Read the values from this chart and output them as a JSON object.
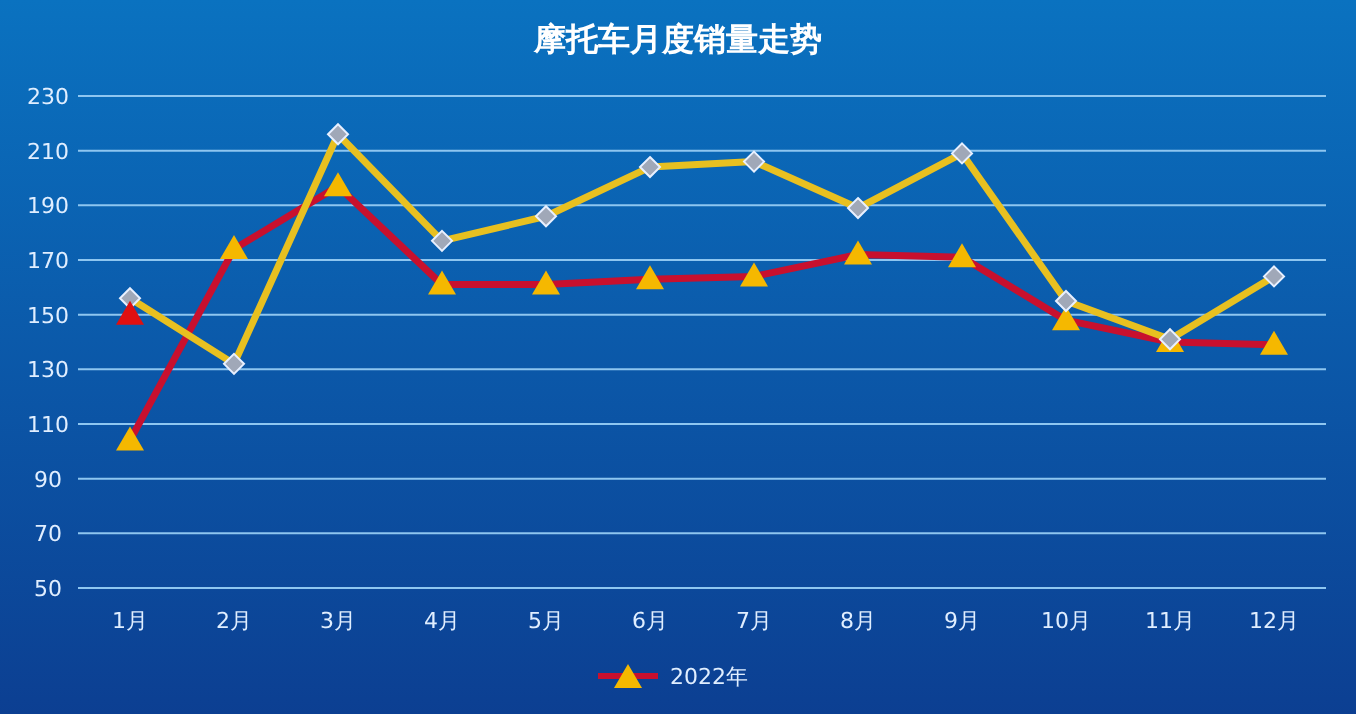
{
  "chart_data": {
    "type": "line",
    "title": "摩托车月度销量走势",
    "categories": [
      "1月",
      "2月",
      "3月",
      "4月",
      "5月",
      "6月",
      "7月",
      "8月",
      "9月",
      "10月",
      "11月",
      "12月"
    ],
    "series": [
      {
        "name": "2022年",
        "color": "#c8102e",
        "marker": "triangle",
        "values": [
          104,
          174,
          197,
          161,
          161,
          163,
          164,
          172,
          171,
          148,
          140,
          139
        ]
      },
      {
        "color": "#e8c020",
        "marker": "diamond",
        "values": [
          156,
          132,
          216,
          177,
          186,
          204,
          206,
          189,
          209,
          155,
          141,
          164
        ]
      },
      {
        "color": "#e01010",
        "marker": "triangle",
        "values": [
          150,
          null,
          null,
          null,
          null,
          null,
          null,
          null,
          null,
          null,
          null,
          null
        ]
      }
    ],
    "ylim": [
      50,
      230
    ],
    "yticks": [
      50,
      70,
      90,
      110,
      130,
      150,
      170,
      190,
      210,
      230
    ],
    "grid": "y",
    "legend": "bottom"
  }
}
